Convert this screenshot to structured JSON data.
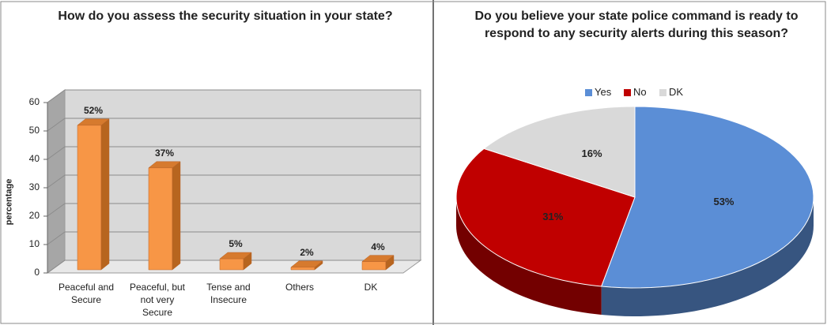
{
  "chart_data": [
    {
      "type": "bar3d",
      "title": "How do you assess the security situation in your state?",
      "ylabel": "percentage",
      "categories": [
        "Peaceful and Secure",
        "Peaceful, but not very Secure",
        "Tense and Insecure",
        "Others",
        "DK"
      ],
      "values": [
        52,
        37,
        5,
        2,
        4
      ],
      "value_labels": [
        "52%",
        "37%",
        "5%",
        "2%",
        "4%"
      ],
      "color": "#f79646",
      "ylim": [
        0,
        60
      ],
      "yticks": [
        0,
        10,
        20,
        30,
        40,
        50,
        60
      ],
      "grid": true
    },
    {
      "type": "pie3d",
      "title": "Do you believe your state police command is ready to respond to any security alerts  during this season?",
      "categories": [
        "Yes",
        "No",
        "DK"
      ],
      "values": [
        53,
        31,
        16
      ],
      "value_labels": [
        "53%",
        "31%",
        "16%"
      ],
      "colors": [
        "#5b8ed6",
        "#c00000",
        "#d9d9d9"
      ],
      "legend": "top"
    }
  ]
}
